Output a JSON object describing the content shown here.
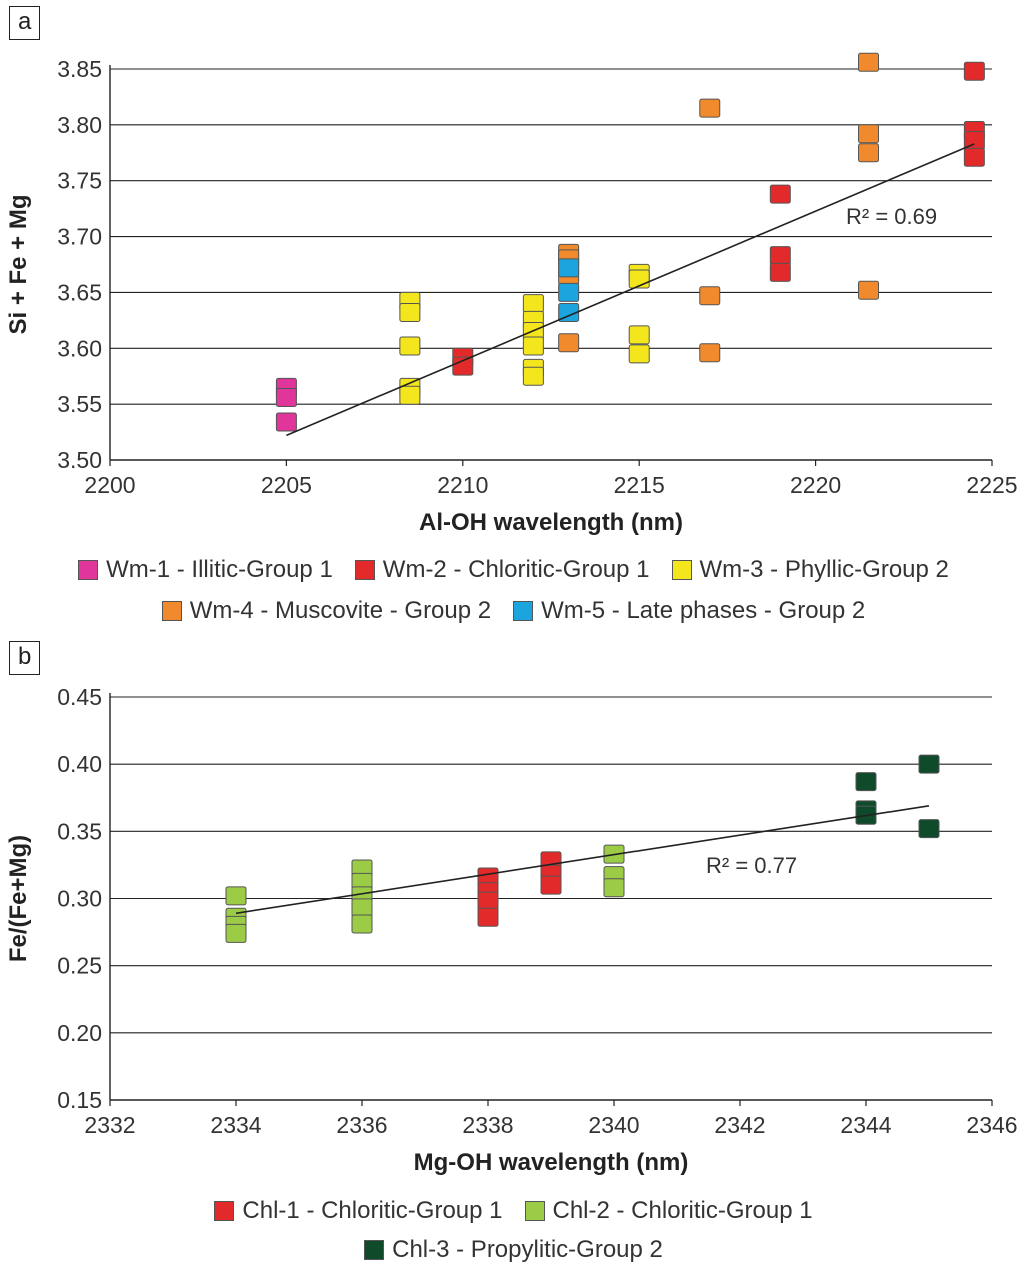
{
  "chart_data": [
    {
      "panel": "a",
      "type": "scatter",
      "xlabel": "Al-OH wavelength (nm)",
      "ylabel": "Si + Fe + Mg",
      "xlim": [
        2200,
        2225
      ],
      "ylim": [
        3.5,
        3.85
      ],
      "xticks": [
        "2200",
        "2205",
        "2210",
        "2215",
        "2220",
        "2225"
      ],
      "yticks": [
        "3.50",
        "3.55",
        "3.60",
        "3.65",
        "3.70",
        "3.75",
        "3.80",
        "3.85"
      ],
      "r2_label": "R² = 0.69",
      "trendline": {
        "x": [
          2205,
          2224.5
        ],
        "y": [
          3.522,
          3.783
        ]
      },
      "series": [
        {
          "name": "Wm-1 - Illitic-Group 1",
          "color": "#e0359a",
          "points": [
            [
              2205,
              3.565
            ],
            [
              2205,
              3.556
            ],
            [
              2205,
              3.534
            ]
          ]
        },
        {
          "name": "Wm-2 - Chloritic-Group 1",
          "color": "#e32a2a",
          "points": [
            [
              2210,
              3.592
            ],
            [
              2210,
              3.584
            ],
            [
              2219,
              3.738
            ],
            [
              2219,
              3.683
            ],
            [
              2219,
              3.668
            ],
            [
              2224.5,
              3.848
            ],
            [
              2224.5,
              3.795
            ],
            [
              2224.5,
              3.786
            ],
            [
              2224.5,
              3.771
            ]
          ]
        },
        {
          "name": "Wm-3 - Phyllic-Group 2",
          "color": "#f4e61c",
          "points": [
            [
              2208.5,
              3.642
            ],
            [
              2208.5,
              3.632
            ],
            [
              2208.5,
              3.602
            ],
            [
              2208.5,
              3.565
            ],
            [
              2208.5,
              3.558
            ],
            [
              2212,
              3.64
            ],
            [
              2212,
              3.625
            ],
            [
              2212,
              3.615
            ],
            [
              2212,
              3.602
            ],
            [
              2212,
              3.582
            ],
            [
              2212,
              3.575
            ],
            [
              2215,
              3.667
            ],
            [
              2215,
              3.662
            ],
            [
              2215,
              3.612
            ],
            [
              2215,
              3.595
            ]
          ]
        },
        {
          "name": "Wm-4 - Muscovite - Group 2",
          "color": "#f08a2c",
          "points": [
            [
              2213,
              3.685
            ],
            [
              2213,
              3.68
            ],
            [
              2213,
              3.665
            ],
            [
              2213,
              3.605
            ],
            [
              2217,
              3.815
            ],
            [
              2217,
              3.647
            ],
            [
              2217,
              3.596
            ],
            [
              2221.5,
              3.856
            ],
            [
              2221.5,
              3.792
            ],
            [
              2221.5,
              3.775
            ],
            [
              2221.5,
              3.652
            ]
          ]
        },
        {
          "name": "Wm-5 - Late phases - Group 2",
          "color": "#1ba4de",
          "points": [
            [
              2213,
              3.672
            ],
            [
              2213,
              3.65
            ],
            [
              2213,
              3.632
            ]
          ]
        }
      ]
    },
    {
      "panel": "b",
      "type": "scatter",
      "xlabel": "Mg-OH wavelength (nm)",
      "ylabel": "Fe/(Fe+Mg)",
      "xlim": [
        2332,
        2346
      ],
      "ylim": [
        0.15,
        0.45
      ],
      "xticks": [
        "2332",
        "2334",
        "2336",
        "2338",
        "2340",
        "2342",
        "2344",
        "2346"
      ],
      "yticks": [
        "0.15",
        "0.20",
        "0.25",
        "0.30",
        "0.35",
        "0.40",
        "0.45"
      ],
      "r2_label": "R² = 0.77",
      "trendline": {
        "x": [
          2334,
          2345
        ],
        "y": [
          0.289,
          0.369
        ]
      },
      "series": [
        {
          "name": "Chl-1 - Chloritic-Group 1",
          "color": "#e32a2a",
          "points": [
            [
              2338,
              0.316
            ],
            [
              2338,
              0.305
            ],
            [
              2338,
              0.298
            ],
            [
              2338,
              0.286
            ],
            [
              2339,
              0.328
            ],
            [
              2339,
              0.318
            ],
            [
              2339,
              0.31
            ]
          ]
        },
        {
          "name": "Chl-2 - Chloritic-Group 1",
          "color": "#9ccc46",
          "points": [
            [
              2334,
              0.302
            ],
            [
              2334,
              0.286
            ],
            [
              2334,
              0.28
            ],
            [
              2334,
              0.274
            ],
            [
              2336,
              0.322
            ],
            [
              2336,
              0.312
            ],
            [
              2336,
              0.302
            ],
            [
              2336,
              0.293
            ],
            [
              2336,
              0.281
            ],
            [
              2340,
              0.333
            ],
            [
              2340,
              0.317
            ],
            [
              2340,
              0.308
            ]
          ]
        },
        {
          "name": "Chl-3 - Propylitic-Group 2",
          "color": "#0f4a2a",
          "points": [
            [
              2344,
              0.387
            ],
            [
              2344,
              0.366
            ],
            [
              2344,
              0.362
            ],
            [
              2345,
              0.4
            ],
            [
              2345,
              0.352
            ]
          ]
        }
      ]
    }
  ],
  "panels": {
    "a": {
      "tag": "a"
    },
    "b": {
      "tag": "b"
    }
  }
}
